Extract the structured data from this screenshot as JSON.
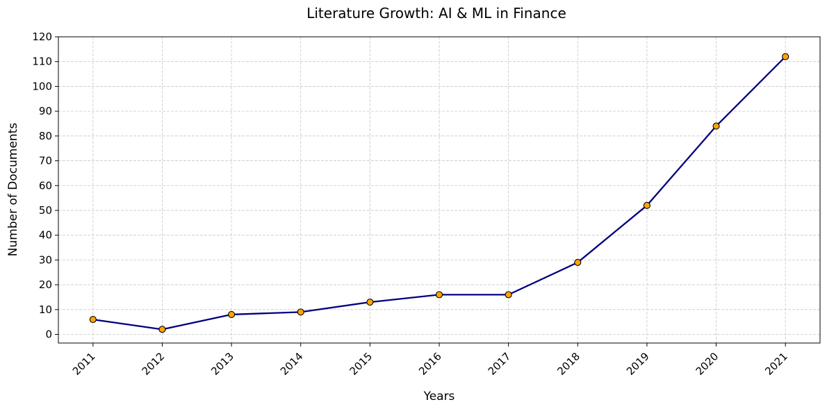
{
  "chart_data": {
    "type": "line",
    "title": "Literature Growth: AI & ML in Finance",
    "xlabel": "Years",
    "ylabel": "Number of Documents",
    "categories": [
      "2011",
      "2012",
      "2013",
      "2014",
      "2015",
      "2016",
      "2017",
      "2018",
      "2019",
      "2020",
      "2021"
    ],
    "series": [
      {
        "values": [
          6,
          2,
          8,
          9,
          13,
          16,
          16,
          29,
          52,
          84,
          112
        ]
      }
    ],
    "yticks": [
      0,
      10,
      20,
      30,
      40,
      50,
      60,
      70,
      80,
      90,
      100,
      110,
      120
    ],
    "ylim": [
      -3.5,
      120
    ],
    "grid": true,
    "x_tick_rotation": 45,
    "colors": {
      "line": "#000080",
      "marker_fill": "#ffa500",
      "marker_edge": "#000000"
    }
  }
}
